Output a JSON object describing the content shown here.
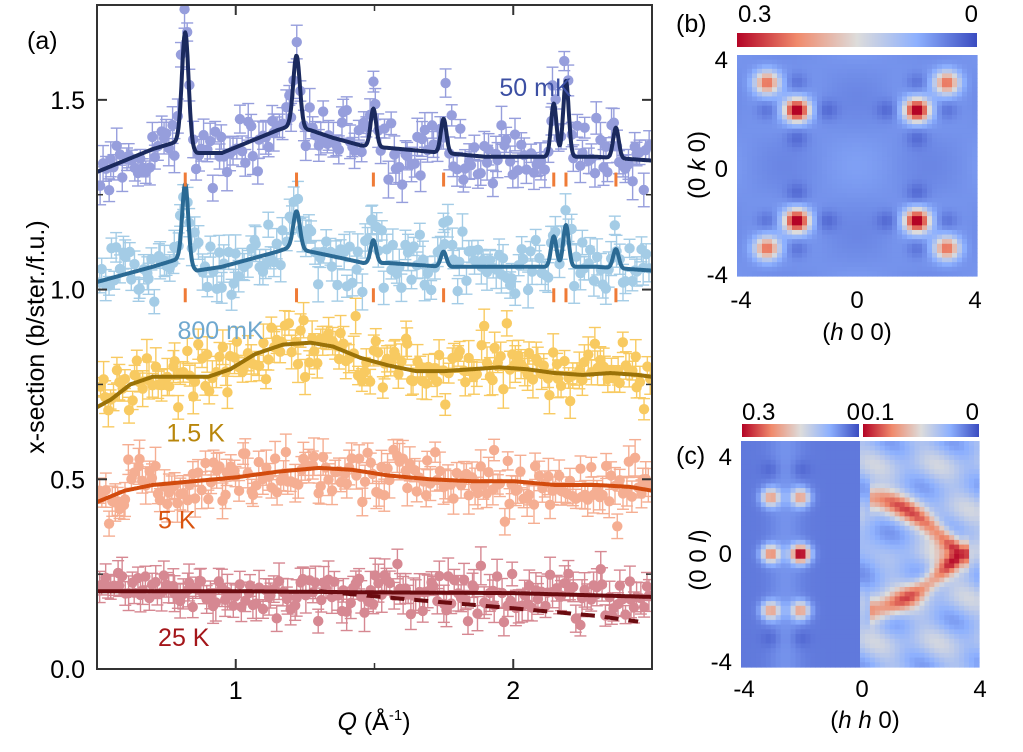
{
  "chart_data": [
    {
      "panel": "(a)",
      "type": "scatter",
      "title": "",
      "xlabel": "Q (Å-1)",
      "xlabel_italic": "Q",
      "xlabel_unit": " (Å",
      "xlabel_sup": "-1",
      "xlabel_close": ")",
      "ylabel": "x-section (b/ster./f.u.)",
      "xlim": [
        0.5,
        2.5
      ],
      "ylim": [
        0.0,
        1.75
      ],
      "xticks": [
        1,
        2
      ],
      "xtick_labels": [
        "1",
        "2"
      ],
      "xminor_ticks": [
        1.5
      ],
      "yticks": [
        0.0,
        0.5,
        1.0,
        1.5
      ],
      "ytick_labels": [
        "0.0",
        "0.5",
        "1.0",
        "1.5"
      ],
      "yminor_ticks": [
        0.25,
        0.75,
        1.25
      ],
      "bragg_positions": [
        0.818,
        1.219,
        1.496,
        1.749,
        2.146,
        2.19,
        2.37
      ],
      "bragg_rows": [
        {
          "y_center": 1.29
        },
        {
          "y_center": 0.985
        }
      ],
      "series": [
        {
          "name": "50 mK",
          "label_pos": [
            1.95,
            1.51
          ],
          "label_color": "#3c4fa3",
          "point_color": "#7d86d4",
          "fit_color": "#1b2a5e",
          "fit_dashed": false,
          "noise": 0.055,
          "baseline": [
            [
              0.5,
              1.31
            ],
            [
              0.6,
              1.34
            ],
            [
              0.7,
              1.37
            ],
            [
              0.79,
              1.39
            ],
            [
              0.86,
              1.36
            ],
            [
              0.95,
              1.36
            ],
            [
              1.05,
              1.39
            ],
            [
              1.15,
              1.42
            ],
            [
              1.19,
              1.43
            ],
            [
              1.27,
              1.42
            ],
            [
              1.35,
              1.4
            ],
            [
              1.45,
              1.38
            ],
            [
              1.6,
              1.37
            ],
            [
              1.75,
              1.36
            ],
            [
              1.9,
              1.35
            ],
            [
              2.1,
              1.35
            ],
            [
              2.3,
              1.35
            ],
            [
              2.5,
              1.34
            ]
          ],
          "peaks": [
            [
              0.818,
              0.3,
              0.012
            ],
            [
              1.219,
              0.19,
              0.012
            ],
            [
              1.496,
              0.1,
              0.01
            ],
            [
              1.749,
              0.09,
              0.01
            ],
            [
              2.146,
              0.14,
              0.01
            ],
            [
              2.19,
              0.2,
              0.01
            ],
            [
              2.37,
              0.08,
              0.01
            ]
          ]
        },
        {
          "name": "800 mK",
          "label_pos": [
            0.79,
            0.87
          ],
          "label_color": "#6fa8cf",
          "point_color": "#8ec0e0",
          "fit_color": "#2b6a94",
          "fit_dashed": false,
          "noise": 0.055,
          "baseline": [
            [
              0.5,
              1.02
            ],
            [
              0.6,
              1.04
            ],
            [
              0.7,
              1.06
            ],
            [
              0.79,
              1.08
            ],
            [
              0.86,
              1.05
            ],
            [
              0.95,
              1.06
            ],
            [
              1.05,
              1.08
            ],
            [
              1.15,
              1.1
            ],
            [
              1.19,
              1.11
            ],
            [
              1.27,
              1.1
            ],
            [
              1.4,
              1.08
            ],
            [
              1.46,
              1.07
            ],
            [
              1.55,
              1.07
            ],
            [
              1.75,
              1.06
            ],
            [
              1.9,
              1.06
            ],
            [
              2.1,
              1.06
            ],
            [
              2.3,
              1.06
            ],
            [
              2.5,
              1.05
            ]
          ],
          "peaks": [
            [
              0.818,
              0.21,
              0.011
            ],
            [
              1.219,
              0.1,
              0.012
            ],
            [
              1.496,
              0.06,
              0.01
            ],
            [
              1.749,
              0.04,
              0.01
            ],
            [
              2.146,
              0.08,
              0.01
            ],
            [
              2.19,
              0.11,
              0.01
            ],
            [
              2.37,
              0.05,
              0.01
            ]
          ]
        },
        {
          "name": "1.5 K",
          "label_pos": [
            0.75,
            0.6
          ],
          "label_color": "#b8860b",
          "point_color": "#f7bd3a",
          "fit_color": "#9a7208",
          "fit_dashed": false,
          "noise": 0.06,
          "baseline": [
            [
              0.5,
              0.69
            ],
            [
              0.55,
              0.71
            ],
            [
              0.62,
              0.75
            ],
            [
              0.7,
              0.77
            ],
            [
              0.8,
              0.77
            ],
            [
              0.9,
              0.77
            ],
            [
              0.98,
              0.79
            ],
            [
              1.07,
              0.83
            ],
            [
              1.17,
              0.855
            ],
            [
              1.27,
              0.86
            ],
            [
              1.35,
              0.85
            ],
            [
              1.45,
              0.82
            ],
            [
              1.55,
              0.8
            ],
            [
              1.65,
              0.785
            ],
            [
              1.75,
              0.785
            ],
            [
              1.85,
              0.79
            ],
            [
              1.95,
              0.795
            ],
            [
              2.05,
              0.79
            ],
            [
              2.15,
              0.78
            ],
            [
              2.25,
              0.775
            ],
            [
              2.35,
              0.78
            ],
            [
              2.45,
              0.775
            ],
            [
              2.5,
              0.77
            ]
          ],
          "peaks": []
        },
        {
          "name": "5 K",
          "label_pos": [
            0.72,
            0.37
          ],
          "label_color": "#d9540f",
          "point_color": "#f39a78",
          "fit_color": "#d24b0e",
          "fit_dashed": false,
          "noise": 0.055,
          "baseline": [
            [
              0.5,
              0.44
            ],
            [
              0.6,
              0.47
            ],
            [
              0.7,
              0.485
            ],
            [
              0.85,
              0.495
            ],
            [
              1.0,
              0.505
            ],
            [
              1.15,
              0.52
            ],
            [
              1.3,
              0.53
            ],
            [
              1.42,
              0.525
            ],
            [
              1.55,
              0.51
            ],
            [
              1.7,
              0.5
            ],
            [
              1.85,
              0.495
            ],
            [
              2.0,
              0.495
            ],
            [
              2.15,
              0.485
            ],
            [
              2.3,
              0.485
            ],
            [
              2.42,
              0.48
            ],
            [
              2.5,
              0.47
            ]
          ],
          "peaks": []
        },
        {
          "name": "25 K",
          "label_pos": [
            0.72,
            0.06
          ],
          "label_color": "#a4161a",
          "point_color": "#cc6b77",
          "fit_color": "#6b0b10",
          "fit_dashed": false,
          "noise": 0.045,
          "baseline": [
            [
              0.5,
              0.205
            ],
            [
              1.0,
              0.205
            ],
            [
              1.5,
              0.202
            ],
            [
              2.0,
              0.2
            ],
            [
              2.5,
              0.19
            ]
          ],
          "peaks": []
        },
        {
          "name": "25 K (dashed)",
          "label_pos": null,
          "label_color": "#6b0b10",
          "point_color": null,
          "fit_color": "#6b0b10",
          "fit_dashed": true,
          "noise": 0,
          "baseline": [
            [
              1.3,
              0.205
            ],
            [
              1.6,
              0.185
            ],
            [
              2.0,
              0.16
            ],
            [
              2.3,
              0.14
            ],
            [
              2.45,
              0.125
            ]
          ],
          "peaks": []
        }
      ]
    },
    {
      "panel": "(b)",
      "type": "heatmap",
      "xlabel_pre": "(",
      "xlabel_it": "h",
      "xlabel_post": " 0 0)",
      "ylabel_pre": "(0 ",
      "ylabel_it": "k",
      "ylabel_post": " 0)",
      "xlim": [
        -4,
        4
      ],
      "ylim": [
        -4,
        4
      ],
      "xtick_labels": [
        "-4",
        "0",
        "4"
      ],
      "ytick_labels": [
        "4",
        "0",
        "-4"
      ],
      "colorbar": {
        "max_label": "0.3",
        "min_label": "0",
        "vmax": 0.3,
        "vmin": 0
      },
      "spots": [
        {
          "h": -2,
          "k": 2,
          "value": 0.3
        },
        {
          "h": 2,
          "k": 2,
          "value": 0.3
        },
        {
          "h": -2,
          "k": -2,
          "value": 0.3
        },
        {
          "h": 2,
          "k": -2,
          "value": 0.3
        },
        {
          "h": -3,
          "k": 3,
          "value": 0.2
        },
        {
          "h": 3,
          "k": 3,
          "value": 0.2
        },
        {
          "h": -3,
          "k": -3,
          "value": 0.2
        },
        {
          "h": 3,
          "k": -3,
          "value": 0.2
        }
      ],
      "background": 0.04
    },
    {
      "panel": "(c)",
      "type": "heatmap",
      "xlabel_pre": "(",
      "xlabel_it": "h h",
      "xlabel_post": " 0)",
      "ylabel_pre": "(0 0 ",
      "ylabel_it": "l",
      "ylabel_post": ")",
      "xlim": [
        -4,
        4
      ],
      "ylim": [
        -4,
        4
      ],
      "xtick_labels": [
        "-4",
        "0",
        "4"
      ],
      "ytick_labels": [
        "4",
        "0",
        "-4"
      ],
      "colorbars": [
        {
          "max_label": "0.3",
          "min_label": "0",
          "vmax": 0.3,
          "vmin": 0
        },
        {
          "max_label": "0.1",
          "min_label": "0",
          "vmax": 0.1,
          "vmin": 0
        }
      ],
      "left_spots": [
        {
          "hh": -3,
          "l": 2,
          "value": 0.18
        },
        {
          "hh": -2,
          "l": 2,
          "value": 0.18
        },
        {
          "hh": -3,
          "l": 0,
          "value": 0.2
        },
        {
          "hh": -2,
          "l": 0,
          "value": 0.3
        },
        {
          "hh": -3,
          "l": -2,
          "value": 0.18
        },
        {
          "hh": -2,
          "l": -2,
          "value": 0.18
        }
      ],
      "right_pattern": "diffuse arcs from (0.5,±2) converging toward (3.3,0)"
    }
  ]
}
